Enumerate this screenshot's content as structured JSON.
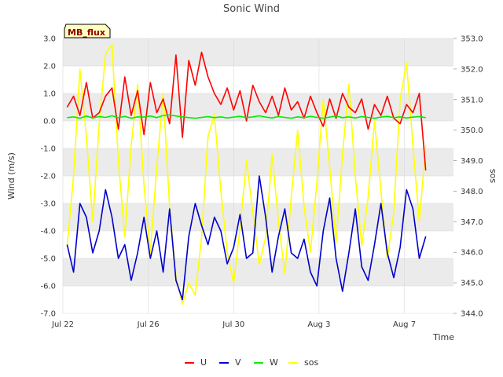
{
  "chart_data": {
    "type": "line",
    "title": "Sonic Wind",
    "badge": "MB_flux",
    "xlabel": "Time",
    "ylabel": "Wind (m/s)",
    "y2label": "sos",
    "xlim": [
      0,
      18.3
    ],
    "ylim": [
      -7.0,
      3.0
    ],
    "y2lim": [
      344.0,
      353.0
    ],
    "x_ticks": [
      {
        "x": 0,
        "label": "Jul 22"
      },
      {
        "x": 4,
        "label": "Jul 26"
      },
      {
        "x": 8,
        "label": "Jul 30"
      },
      {
        "x": 12,
        "label": "Aug 3"
      },
      {
        "x": 16,
        "label": "Aug 7"
      }
    ],
    "y_ticks": [
      "3.0",
      "2.0",
      "1.0",
      "0.0",
      "-1.0",
      "-2.0",
      "-3.0",
      "-4.0",
      "-5.0",
      "-6.0",
      "-7.0"
    ],
    "y_tick_values": [
      3,
      2,
      1,
      0,
      -1,
      -2,
      -3,
      -4,
      -5,
      -6,
      -7
    ],
    "y2_ticks": [
      "353.0",
      "352.0",
      "351.0",
      "350.0",
      "349.0",
      "348.0",
      "347.0",
      "346.0",
      "345.0",
      "344.0"
    ],
    "y2_tick_values": [
      353,
      352,
      351,
      350,
      349,
      348,
      347,
      346,
      345,
      344
    ],
    "colors": {
      "U": "#ff0000",
      "V": "#0000cc",
      "W": "#00ee00",
      "sos": "#ffff00",
      "band": "#ebebeb",
      "grid": "#d8d8d8"
    },
    "series": [
      {
        "name": "U",
        "axis": "left",
        "color": "#ff0000",
        "x": [
          0.2,
          0.5,
          0.8,
          1.1,
          1.4,
          1.7,
          2.0,
          2.3,
          2.6,
          2.9,
          3.2,
          3.5,
          3.8,
          4.1,
          4.4,
          4.7,
          5.0,
          5.3,
          5.6,
          5.9,
          6.2,
          6.5,
          6.8,
          7.1,
          7.4,
          7.7,
          8.0,
          8.3,
          8.6,
          8.9,
          9.2,
          9.5,
          9.8,
          10.1,
          10.4,
          10.7,
          11.0,
          11.3,
          11.6,
          11.9,
          12.2,
          12.5,
          12.8,
          13.1,
          13.4,
          13.7,
          14.0,
          14.3,
          14.6,
          14.9,
          15.2,
          15.5,
          15.8,
          16.1,
          16.4,
          16.7,
          17.0
        ],
        "values": [
          0.5,
          0.9,
          0.2,
          1.4,
          0.1,
          0.3,
          0.9,
          1.2,
          -0.3,
          1.6,
          0.2,
          1.1,
          -0.5,
          1.4,
          0.3,
          0.8,
          -0.1,
          2.4,
          -0.6,
          2.2,
          1.3,
          2.5,
          1.6,
          1.0,
          0.6,
          1.2,
          0.4,
          1.1,
          0.0,
          1.3,
          0.7,
          0.3,
          0.9,
          0.2,
          1.2,
          0.4,
          0.7,
          0.1,
          0.9,
          0.3,
          -0.2,
          0.8,
          0.1,
          1.0,
          0.5,
          0.3,
          0.8,
          -0.3,
          0.6,
          0.2,
          0.9,
          0.1,
          -0.1,
          0.6,
          0.3,
          1.0,
          -1.8
        ]
      },
      {
        "name": "V",
        "axis": "left",
        "color": "#0000cc",
        "x": [
          0.2,
          0.5,
          0.8,
          1.1,
          1.4,
          1.7,
          2.0,
          2.3,
          2.6,
          2.9,
          3.2,
          3.5,
          3.8,
          4.1,
          4.4,
          4.7,
          5.0,
          5.3,
          5.6,
          5.9,
          6.2,
          6.5,
          6.8,
          7.1,
          7.4,
          7.7,
          8.0,
          8.3,
          8.6,
          8.9,
          9.2,
          9.5,
          9.8,
          10.1,
          10.4,
          10.7,
          11.0,
          11.3,
          11.6,
          11.9,
          12.2,
          12.5,
          12.8,
          13.1,
          13.4,
          13.7,
          14.0,
          14.3,
          14.6,
          14.9,
          15.2,
          15.5,
          15.8,
          16.1,
          16.4,
          16.7,
          17.0
        ],
        "values": [
          -4.5,
          -5.5,
          -3.0,
          -3.5,
          -4.8,
          -4.0,
          -2.5,
          -3.5,
          -5.0,
          -4.5,
          -5.8,
          -4.8,
          -3.5,
          -5.0,
          -4.0,
          -5.5,
          -3.2,
          -5.8,
          -6.5,
          -4.2,
          -3.0,
          -3.8,
          -4.5,
          -3.5,
          -4.0,
          -5.2,
          -4.6,
          -3.4,
          -5.0,
          -4.8,
          -2.0,
          -3.5,
          -5.5,
          -4.2,
          -3.2,
          -4.8,
          -5.0,
          -4.3,
          -5.5,
          -6.0,
          -4.0,
          -2.8,
          -5.0,
          -6.2,
          -4.8,
          -3.2,
          -5.3,
          -5.8,
          -4.5,
          -3.0,
          -4.8,
          -5.7,
          -4.6,
          -2.5,
          -3.2,
          -5.0,
          -4.2
        ]
      },
      {
        "name": "W",
        "axis": "left",
        "color": "#00ee00",
        "x": [
          0.2,
          0.5,
          0.8,
          1.1,
          1.4,
          1.7,
          2.0,
          2.3,
          2.6,
          2.9,
          3.2,
          3.5,
          3.8,
          4.1,
          4.4,
          4.7,
          5.0,
          5.3,
          5.6,
          5.9,
          6.2,
          6.5,
          6.8,
          7.1,
          7.4,
          7.7,
          8.0,
          8.3,
          8.6,
          8.9,
          9.2,
          9.5,
          9.8,
          10.1,
          10.4,
          10.7,
          11.0,
          11.3,
          11.6,
          11.9,
          12.2,
          12.5,
          12.8,
          13.1,
          13.4,
          13.7,
          14.0,
          14.3,
          14.6,
          14.9,
          15.2,
          15.5,
          15.8,
          16.1,
          16.4,
          16.7,
          17.0
        ],
        "values": [
          0.12,
          0.15,
          0.1,
          0.18,
          0.11,
          0.16,
          0.13,
          0.19,
          0.12,
          0.17,
          0.1,
          0.15,
          0.14,
          0.18,
          0.12,
          0.2,
          0.22,
          0.18,
          0.15,
          0.12,
          0.1,
          0.13,
          0.16,
          0.12,
          0.15,
          0.11,
          0.14,
          0.17,
          0.12,
          0.15,
          0.19,
          0.14,
          0.11,
          0.16,
          0.13,
          0.1,
          0.15,
          0.12,
          0.17,
          0.13,
          0.1,
          0.14,
          0.18,
          0.12,
          0.15,
          0.11,
          0.16,
          0.13,
          0.1,
          0.14,
          0.17,
          0.12,
          0.15,
          0.11,
          0.14,
          0.16,
          0.12
        ]
      },
      {
        "name": "sos",
        "axis": "right",
        "color": "#ffff00",
        "x": [
          0.2,
          0.5,
          0.8,
          1.1,
          1.4,
          1.7,
          2.0,
          2.3,
          2.6,
          2.9,
          3.2,
          3.5,
          3.8,
          4.1,
          4.4,
          4.7,
          5.0,
          5.3,
          5.6,
          5.9,
          6.2,
          6.5,
          6.8,
          7.1,
          7.4,
          7.7,
          8.0,
          8.3,
          8.6,
          8.9,
          9.2,
          9.5,
          9.8,
          10.1,
          10.4,
          10.7,
          11.0,
          11.3,
          11.6,
          11.9,
          12.2,
          12.5,
          12.8,
          13.1,
          13.4,
          13.7,
          14.0,
          14.3,
          14.6,
          14.9,
          15.2,
          15.5,
          15.8,
          16.1,
          16.4,
          16.7,
          17.0
        ],
        "values": [
          346.2,
          348.5,
          352.0,
          349.8,
          347.0,
          350.2,
          352.5,
          352.8,
          349.0,
          346.5,
          349.5,
          351.5,
          348.2,
          346.0,
          348.8,
          351.2,
          347.5,
          345.2,
          344.3,
          345.0,
          344.6,
          346.5,
          349.8,
          350.5,
          348.0,
          346.0,
          345.0,
          346.8,
          349.0,
          347.3,
          345.6,
          346.5,
          349.2,
          347.0,
          345.3,
          347.8,
          350.0,
          347.5,
          346.0,
          348.3,
          351.0,
          348.8,
          346.3,
          349.2,
          351.5,
          348.5,
          346.2,
          347.8,
          350.3,
          348.0,
          345.8,
          347.3,
          351.0,
          352.2,
          349.5,
          347.0,
          349.5
        ]
      }
    ]
  },
  "legend": [
    {
      "label": "U",
      "color": "#ff0000"
    },
    {
      "label": "V",
      "color": "#0000cc"
    },
    {
      "label": "W",
      "color": "#00ee00"
    },
    {
      "label": "sos",
      "color": "#ffff00"
    }
  ]
}
